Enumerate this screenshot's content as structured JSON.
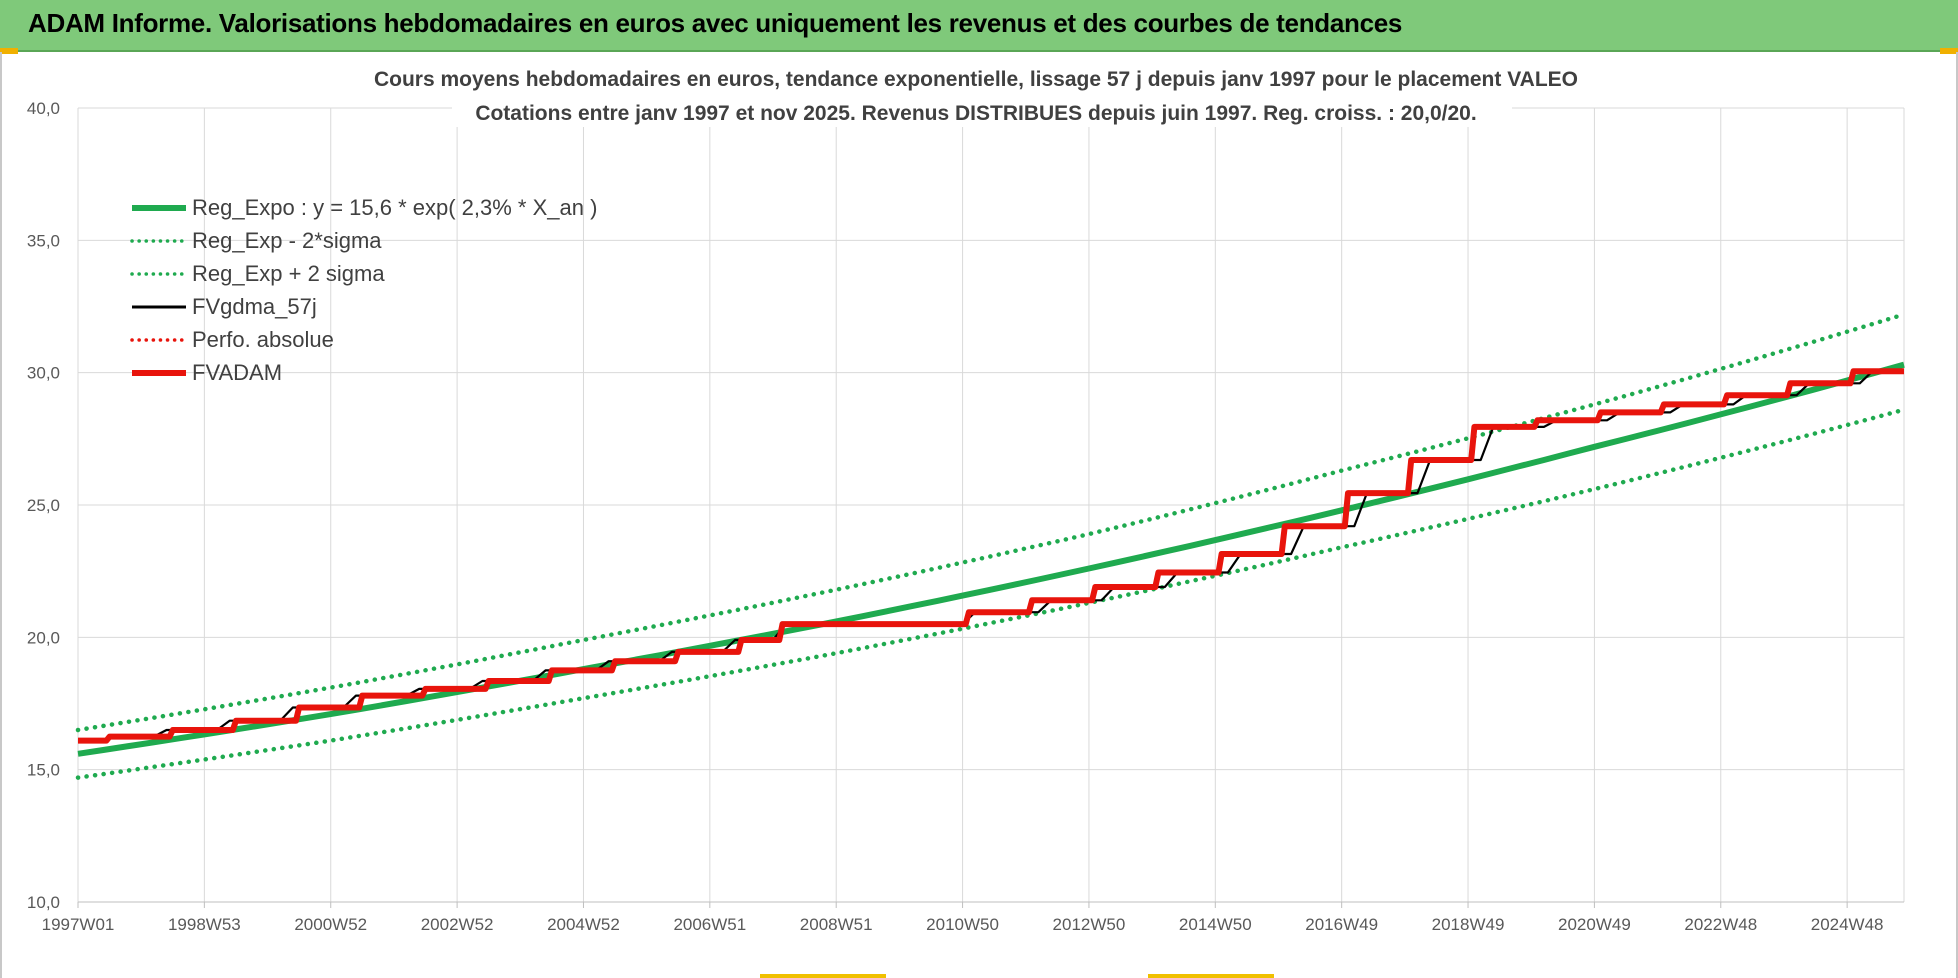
{
  "banner": {
    "title": "ADAM Informe. Valorisations hebdomadaires en euros avec uniquement les revenus et des courbes de tendances"
  },
  "colors": {
    "banner_bg": "#7fc97a",
    "green": "#1faa4f",
    "red": "#e8140c",
    "black": "#000000",
    "grid": "#d9d9d9"
  },
  "chart_data": {
    "type": "line",
    "title": "Cours moyens hebdomadaires en euros, tendance exponentielle, lissage 57 j depuis janv 1997 pour le placement VALEO",
    "subtitle": "Cotations entre janv 1997 et nov 2025. Revenus DISTRIBUES depuis juin 1997. Reg. croiss. : 20,0/20.",
    "xlabel": "",
    "ylabel": "",
    "ylim": [
      10,
      40
    ],
    "yticks": [
      "10,0",
      "15,0",
      "20,0",
      "25,0",
      "30,0",
      "35,0",
      "40,0"
    ],
    "x_range_years": [
      1997.0,
      2025.9
    ],
    "x_tick_labels": [
      "1997W01",
      "1998W53",
      "2000W52",
      "2002W52",
      "2004W52",
      "2006W51",
      "2008W51",
      "2010W50",
      "2012W50",
      "2014W50",
      "2016W49",
      "2018W49",
      "2020W49",
      "2022W48",
      "2024W48"
    ],
    "x_tick_years": [
      1997.0,
      1999.0,
      2001.0,
      2003.0,
      2005.0,
      2007.0,
      2009.0,
      2011.0,
      2013.0,
      2015.0,
      2017.0,
      2019.0,
      2021.0,
      2023.0,
      2025.0
    ],
    "grid": true,
    "legend_position": "top-left",
    "series": [
      {
        "name": "Reg_Expo : y = 15,6 * exp( 2,3% *  X_an )",
        "style": "solid-thick",
        "color": "#1faa4f",
        "x": [
          1997.0,
          2001.0,
          2005.0,
          2009.0,
          2013.0,
          2017.0,
          2021.0,
          2025.9
        ],
        "values": [
          15.6,
          17.1,
          18.8,
          20.6,
          22.6,
          24.8,
          27.2,
          30.3
        ]
      },
      {
        "name": "Reg_Exp - 2*sigma",
        "style": "dotted",
        "color": "#1faa4f",
        "x": [
          1997.0,
          2001.0,
          2005.0,
          2009.0,
          2013.0,
          2017.0,
          2021.0,
          2025.9
        ],
        "values": [
          14.7,
          16.1,
          17.7,
          19.4,
          21.3,
          23.4,
          25.6,
          28.6
        ]
      },
      {
        "name": "Reg_Exp + 2 sigma",
        "style": "dotted",
        "color": "#1faa4f",
        "x": [
          1997.0,
          2001.0,
          2005.0,
          2009.0,
          2013.0,
          2017.0,
          2021.0,
          2025.9
        ],
        "values": [
          16.5,
          18.1,
          19.9,
          21.8,
          23.9,
          26.3,
          28.8,
          32.2
        ]
      },
      {
        "name": "FVgdma_57j",
        "style": "solid-thin",
        "color": "#000000",
        "x": [
          1997.0,
          1997.4,
          1997.6,
          1998.2,
          1998.4,
          1999.2,
          1999.4,
          2000.2,
          2000.4,
          2001.2,
          2001.4,
          2002.2,
          2002.4,
          2003.2,
          2003.4,
          2004.2,
          2004.4,
          2005.2,
          2005.4,
          2006.2,
          2006.4,
          2007.2,
          2007.4,
          2008.0,
          2008.2,
          2011.0,
          2011.2,
          2012.2,
          2012.4,
          2013.2,
          2013.4,
          2014.2,
          2014.4,
          2015.2,
          2015.4,
          2016.2,
          2016.4,
          2017.2,
          2017.4,
          2018.2,
          2018.4,
          2019.2,
          2019.4,
          2020.2,
          2020.4,
          2021.2,
          2021.4,
          2022.2,
          2022.4,
          2023.2,
          2023.4,
          2024.2,
          2024.4,
          2025.2,
          2025.4,
          2025.9
        ],
        "values": [
          16.1,
          16.1,
          16.25,
          16.25,
          16.5,
          16.5,
          16.85,
          16.85,
          17.35,
          17.35,
          17.8,
          17.8,
          18.05,
          18.05,
          18.35,
          18.35,
          18.75,
          18.75,
          19.1,
          19.1,
          19.45,
          19.45,
          19.9,
          19.9,
          20.5,
          20.5,
          20.95,
          20.95,
          21.4,
          21.4,
          21.9,
          21.9,
          22.45,
          22.45,
          23.15,
          23.15,
          24.2,
          24.2,
          25.45,
          25.45,
          26.7,
          26.7,
          27.95,
          27.95,
          28.2,
          28.2,
          28.5,
          28.5,
          28.8,
          28.8,
          29.15,
          29.15,
          29.6,
          29.6,
          30.05,
          30.05
        ]
      },
      {
        "name": "Perfo. absolue",
        "style": "dotted",
        "color": "#e8140c",
        "x": [],
        "values": []
      },
      {
        "name": "FVADAM",
        "style": "solid-thick",
        "color": "#e8140c",
        "x": [
          1997.0,
          1997.45,
          1997.5,
          1998.45,
          1998.5,
          1999.45,
          1999.5,
          2000.45,
          2000.5,
          2001.45,
          2001.5,
          2002.45,
          2002.5,
          2003.45,
          2003.5,
          2004.45,
          2004.5,
          2005.45,
          2005.5,
          2006.45,
          2006.5,
          2007.45,
          2007.5,
          2008.1,
          2008.15,
          2011.05,
          2011.1,
          2012.05,
          2012.1,
          2013.05,
          2013.1,
          2014.05,
          2014.1,
          2015.05,
          2015.1,
          2016.05,
          2016.1,
          2017.05,
          2017.1,
          2018.05,
          2018.1,
          2019.05,
          2019.1,
          2020.05,
          2020.1,
          2021.05,
          2021.1,
          2022.05,
          2022.1,
          2023.05,
          2023.1,
          2024.05,
          2024.1,
          2025.05,
          2025.1,
          2025.9
        ],
        "values": [
          16.1,
          16.1,
          16.25,
          16.25,
          16.5,
          16.5,
          16.85,
          16.85,
          17.35,
          17.35,
          17.8,
          17.8,
          18.05,
          18.05,
          18.35,
          18.35,
          18.75,
          18.75,
          19.1,
          19.1,
          19.45,
          19.45,
          19.9,
          19.9,
          20.5,
          20.5,
          20.95,
          20.95,
          21.4,
          21.4,
          21.9,
          21.9,
          22.45,
          22.45,
          23.15,
          23.15,
          24.2,
          24.2,
          25.45,
          25.45,
          26.7,
          26.7,
          27.95,
          27.95,
          28.2,
          28.2,
          28.5,
          28.5,
          28.8,
          28.8,
          29.15,
          29.15,
          29.6,
          29.6,
          30.05,
          30.05
        ]
      }
    ]
  }
}
